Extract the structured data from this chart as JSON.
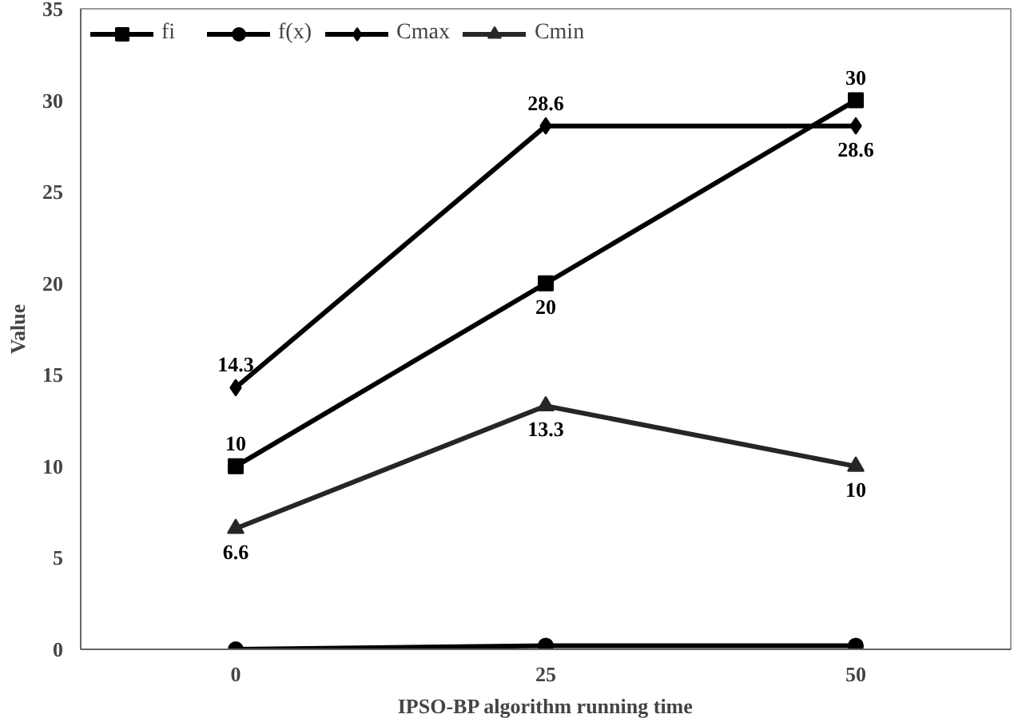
{
  "chart_data": {
    "type": "line",
    "xlabel": "IPSO-BP algorithm running time",
    "ylabel": "Value",
    "categories": [
      "0",
      "25",
      "50"
    ],
    "ylim": [
      0,
      35
    ],
    "yticks": [
      0,
      5,
      10,
      15,
      20,
      25,
      30,
      35
    ],
    "grid": false,
    "legend": "top left",
    "series": [
      {
        "name": "fi",
        "color": "#000000",
        "marker": "square",
        "values": [
          10,
          20,
          30
        ],
        "value_labels": [
          "10",
          "20",
          "30"
        ]
      },
      {
        "name": "f(x)",
        "color": "#000000",
        "marker": "circle",
        "values": [
          0,
          0.2,
          0.2
        ]
      },
      {
        "name": "Cmax",
        "color": "#000000",
        "marker": "diamond",
        "values": [
          14.3,
          28.6,
          28.6
        ],
        "value_labels": [
          "14.3",
          "28.6",
          "28.6"
        ]
      },
      {
        "name": "Cmin",
        "color": "#262626",
        "marker": "triangle",
        "values": [
          6.6,
          13.3,
          10
        ],
        "value_labels": [
          "6.6",
          "13.3",
          "10"
        ]
      }
    ]
  }
}
